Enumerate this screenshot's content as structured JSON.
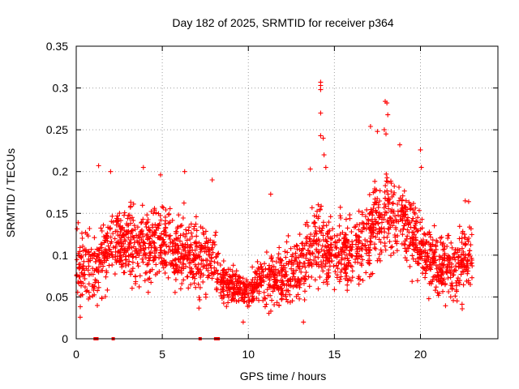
{
  "chart_data": {
    "type": "scatter",
    "title": "Day 182 of 2025, SRMTID for receiver p364",
    "xlabel": "GPS time / hours",
    "ylabel": "SRMTID / TECUs",
    "xlim": [
      0,
      24.5
    ],
    "ylim": [
      0,
      0.35
    ],
    "x_ticks": [
      0,
      5,
      10,
      15,
      20
    ],
    "x_tick_labels": [
      "0",
      "5",
      "10",
      "15",
      "20"
    ],
    "y_ticks": [
      0,
      0.05,
      0.1,
      0.15,
      0.2,
      0.25,
      0.3,
      0.35
    ],
    "y_tick_labels": [
      "0",
      "0.05",
      "0.1",
      "0.15",
      "0.2",
      "0.25",
      "0.3",
      "0.35"
    ],
    "grid": true,
    "marker": "+",
    "color": "#ff0000",
    "series": [
      {
        "name": "SRMTID p364",
        "envelope_hours": [
          0,
          1,
          2,
          3,
          4,
          5,
          6,
          7,
          8,
          8.5,
          9,
          10,
          11,
          12,
          13,
          13.5,
          14,
          14.5,
          15,
          16,
          17,
          17.5,
          18,
          18.5,
          19,
          20,
          21,
          22,
          23
        ],
        "envelope_mean": [
          0.085,
          0.085,
          0.11,
          0.115,
          0.11,
          0.115,
          0.105,
          0.1,
          0.095,
          0.065,
          0.065,
          0.058,
          0.07,
          0.075,
          0.08,
          0.1,
          0.11,
          0.11,
          0.1,
          0.105,
          0.12,
          0.14,
          0.155,
          0.15,
          0.14,
          0.11,
          0.085,
          0.085,
          0.1
        ],
        "envelope_spread": [
          0.04,
          0.045,
          0.045,
          0.045,
          0.045,
          0.045,
          0.045,
          0.045,
          0.04,
          0.025,
          0.025,
          0.02,
          0.03,
          0.035,
          0.045,
          0.05,
          0.055,
          0.05,
          0.04,
          0.04,
          0.05,
          0.055,
          0.055,
          0.05,
          0.045,
          0.045,
          0.04,
          0.04,
          0.04
        ],
        "outliers": [
          {
            "x": 1.3,
            "y": 0.207
          },
          {
            "x": 2.0,
            "y": 0.2
          },
          {
            "x": 3.9,
            "y": 0.205
          },
          {
            "x": 4.9,
            "y": 0.196
          },
          {
            "x": 6.3,
            "y": 0.2
          },
          {
            "x": 7.9,
            "y": 0.19
          },
          {
            "x": 11.3,
            "y": 0.173
          },
          {
            "x": 13.6,
            "y": 0.203
          },
          {
            "x": 14.2,
            "y": 0.307
          },
          {
            "x": 14.2,
            "y": 0.303
          },
          {
            "x": 14.2,
            "y": 0.298
          },
          {
            "x": 14.2,
            "y": 0.27
          },
          {
            "x": 14.2,
            "y": 0.243
          },
          {
            "x": 14.35,
            "y": 0.24
          },
          {
            "x": 14.4,
            "y": 0.22
          },
          {
            "x": 14.5,
            "y": 0.205
          },
          {
            "x": 17.1,
            "y": 0.254
          },
          {
            "x": 17.5,
            "y": 0.248
          },
          {
            "x": 17.95,
            "y": 0.284
          },
          {
            "x": 18.05,
            "y": 0.282
          },
          {
            "x": 18.1,
            "y": 0.268
          },
          {
            "x": 17.9,
            "y": 0.25
          },
          {
            "x": 18.0,
            "y": 0.245
          },
          {
            "x": 18.8,
            "y": 0.232
          },
          {
            "x": 20.0,
            "y": 0.226
          },
          {
            "x": 20.05,
            "y": 0.205
          },
          {
            "x": 22.6,
            "y": 0.165
          },
          {
            "x": 22.8,
            "y": 0.164
          },
          {
            "x": 9.7,
            "y": 0.02
          },
          {
            "x": 13.2,
            "y": 0.02
          }
        ],
        "zero_points": [
          {
            "x": 1.1,
            "y": 0
          },
          {
            "x": 1.15,
            "y": 0
          },
          {
            "x": 1.2,
            "y": 0
          },
          {
            "x": 2.15,
            "y": 0
          },
          {
            "x": 7.2,
            "y": 0
          },
          {
            "x": 8.1,
            "y": 0
          },
          {
            "x": 8.15,
            "y": 0
          },
          {
            "x": 8.2,
            "y": 0
          },
          {
            "x": 8.25,
            "y": 0
          }
        ]
      }
    ]
  }
}
